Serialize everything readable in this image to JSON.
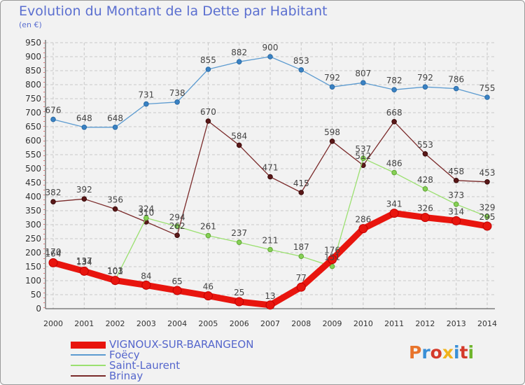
{
  "header": {
    "title": "Evolution du Montant de la Dette par Habitant",
    "subtitle": "(en €)"
  },
  "logo": {
    "text": "Proxiti",
    "letter_colors": [
      "#e8742b",
      "#3a8fd6",
      "#d43a2a",
      "#f0b31d",
      "#3a8fd6",
      "#d43a2a",
      "#6fb52c"
    ]
  },
  "chart_data": {
    "type": "line",
    "title": "Evolution du Montant de la Dette par Habitant",
    "subtitle": "(en €)",
    "xlabel": "",
    "ylabel": "",
    "ylim": [
      0,
      950
    ],
    "ytick_step": 50,
    "grid": true,
    "x": [
      "2000",
      "2001",
      "2002",
      "2003",
      "2004",
      "2005",
      "2006",
      "2007",
      "2008",
      "2009",
      "2010",
      "2011",
      "2012",
      "2013",
      "2014"
    ],
    "series": [
      {
        "name": "VIGNOUX-SUR-BARANGEON",
        "color": "#e8150e",
        "values": [
          164,
          134,
          101,
          84,
          65,
          46,
          25,
          13,
          77,
          176,
          286,
          341,
          326,
          314,
          295
        ],
        "labels": [
          "164",
          "134",
          "101",
          "84",
          "65",
          "46",
          "25",
          "13",
          "77",
          "176",
          "286",
          "341",
          "326",
          "314",
          "295"
        ]
      },
      {
        "name": "Foëcy",
        "color": "#5c9bd0",
        "values": [
          676,
          648,
          648,
          731,
          738,
          855,
          882,
          900,
          853,
          792,
          807,
          782,
          792,
          786,
          755
        ],
        "labels": [
          "676",
          "648",
          "648",
          "731",
          "738",
          "855",
          "882",
          "900",
          "853",
          "792",
          "807",
          "782",
          "792",
          "786",
          "755"
        ]
      },
      {
        "name": "Saint-Laurent",
        "color": "#9be070",
        "values": [
          170,
          137,
          103,
          324,
          294,
          261,
          237,
          211,
          187,
          151,
          537,
          486,
          428,
          373,
          329
        ],
        "labels": [
          "170",
          "137",
          "103",
          "324",
          "294",
          "261",
          "237",
          "211",
          "187",
          "151",
          "537",
          "486",
          "428",
          "373",
          "329"
        ]
      },
      {
        "name": "Brinay",
        "color": "#7a2a2a",
        "values": [
          382,
          392,
          356,
          310,
          262,
          670,
          584,
          471,
          415,
          598,
          512,
          668,
          553,
          458,
          453
        ],
        "labels": [
          "382",
          "392",
          "356",
          "310",
          "262",
          "670",
          "584",
          "471",
          "415",
          "598",
          "512",
          "668",
          "553",
          "458",
          "453"
        ]
      }
    ]
  }
}
